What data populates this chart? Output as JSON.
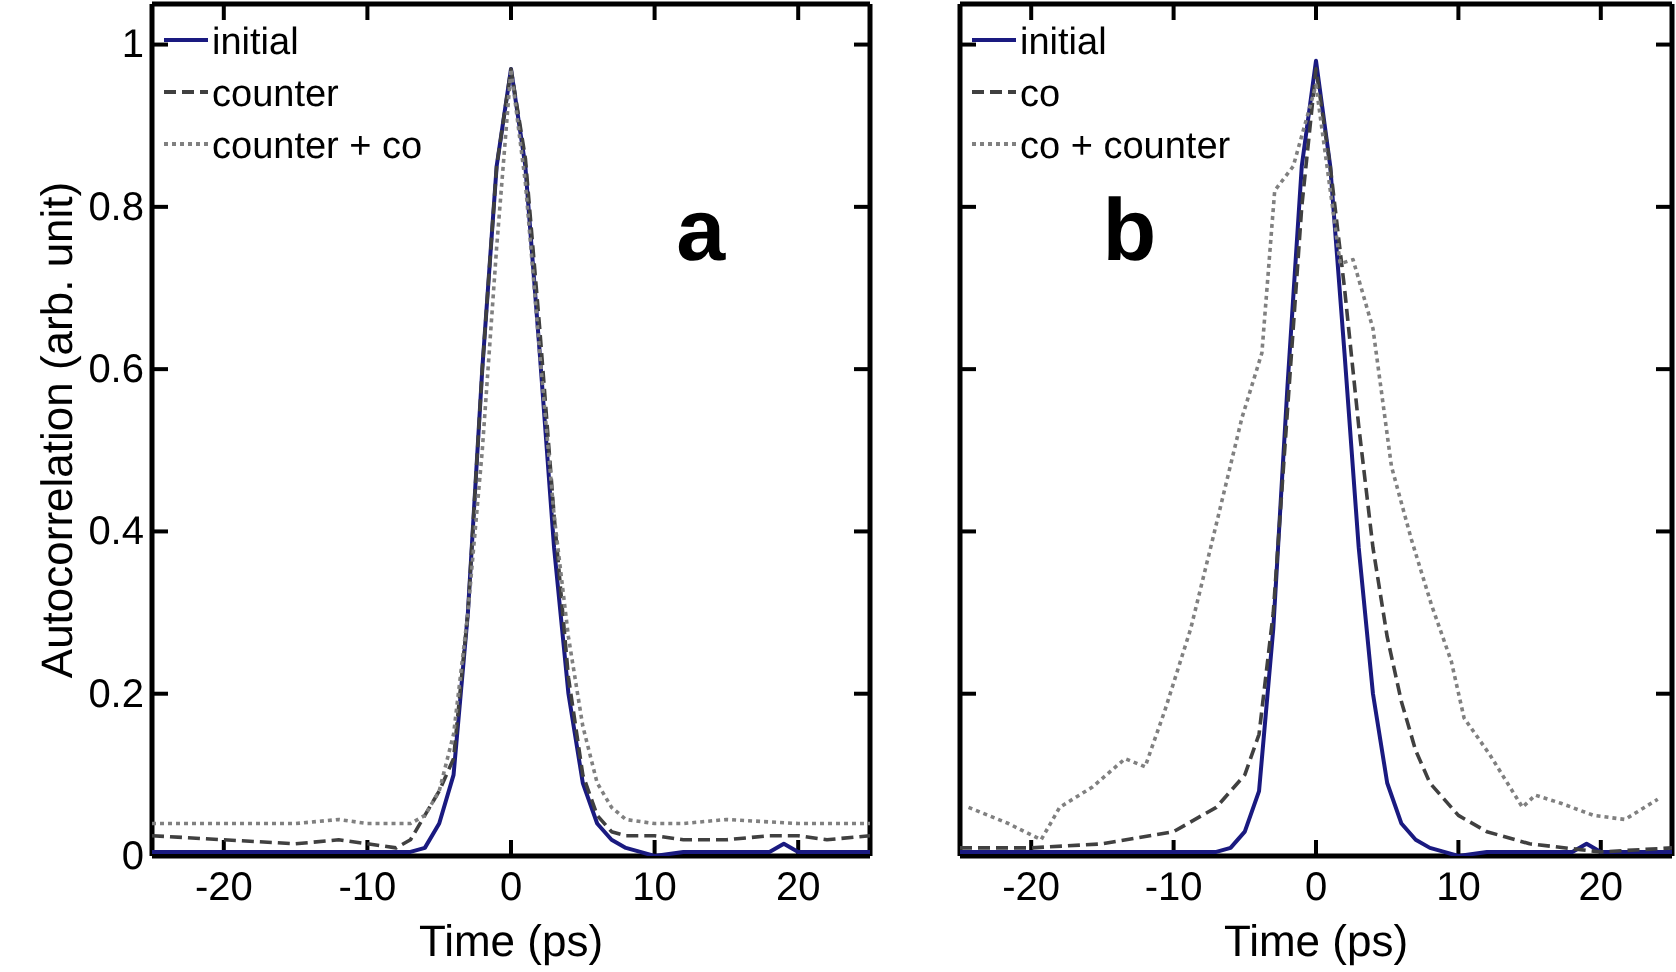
{
  "chart_data": [
    {
      "type": "line",
      "xlabel": "Time (ps)",
      "ylabel": "Autocorrelation (arb. unit)",
      "annotations": [
        "a"
      ],
      "xlim": [
        -25,
        25
      ],
      "xticks": [
        -20,
        -10,
        0,
        10,
        20
      ],
      "ylim": [
        0,
        1.05
      ],
      "yticks": [
        0,
        0.2,
        0.4,
        0.6,
        0.8,
        1
      ],
      "legend": "top left",
      "grid": false,
      "series": [
        {
          "name": "initial",
          "color": "#1a1a80",
          "line_style": "solid",
          "x": [
            -25,
            -20,
            -15,
            -10,
            -8,
            -7,
            -6,
            -5,
            -4,
            -3,
            -2,
            -1,
            0,
            1,
            2,
            3,
            4,
            5,
            6,
            7,
            8,
            9,
            10,
            12,
            15,
            18,
            19,
            20,
            22,
            25
          ],
          "values": [
            0.005,
            0.005,
            0.005,
            0.005,
            0.005,
            0.005,
            0.01,
            0.04,
            0.1,
            0.3,
            0.6,
            0.85,
            0.97,
            0.85,
            0.62,
            0.38,
            0.2,
            0.09,
            0.04,
            0.02,
            0.01,
            0.005,
            0.0,
            0.005,
            0.005,
            0.005,
            0.015,
            0.005,
            0.005,
            0.005
          ]
        },
        {
          "name": "counter",
          "color": "#404040",
          "line_style": "dashed",
          "x": [
            -25,
            -20,
            -15,
            -12,
            -10,
            -8,
            -7,
            -6,
            -5,
            -4,
            -3,
            -2,
            -1,
            0,
            1,
            2,
            3,
            4,
            5,
            6,
            7,
            8,
            10,
            12,
            15,
            18,
            20,
            22,
            25
          ],
          "values": [
            0.025,
            0.02,
            0.015,
            0.02,
            0.015,
            0.01,
            0.02,
            0.05,
            0.08,
            0.12,
            0.3,
            0.6,
            0.85,
            0.97,
            0.86,
            0.65,
            0.42,
            0.22,
            0.1,
            0.05,
            0.03,
            0.025,
            0.025,
            0.02,
            0.02,
            0.025,
            0.025,
            0.02,
            0.025
          ]
        },
        {
          "name": "counter + co",
          "color": "#808080",
          "line_style": "dotted",
          "x": [
            -25,
            -20,
            -15,
            -12,
            -10,
            -8,
            -7,
            -6,
            -5,
            -4,
            -3,
            -2,
            -1,
            0,
            1,
            2,
            3,
            4,
            5,
            6,
            7,
            8,
            10,
            12,
            15,
            20,
            25
          ],
          "values": [
            0.04,
            0.04,
            0.04,
            0.045,
            0.04,
            0.04,
            0.04,
            0.05,
            0.08,
            0.15,
            0.3,
            0.5,
            0.75,
            0.97,
            0.83,
            0.62,
            0.42,
            0.27,
            0.16,
            0.09,
            0.06,
            0.045,
            0.04,
            0.04,
            0.045,
            0.04,
            0.04
          ]
        }
      ]
    },
    {
      "type": "line",
      "xlabel": "Time (ps)",
      "annotations": [
        "b"
      ],
      "xlim": [
        -25,
        25
      ],
      "xticks": [
        -20,
        -10,
        0,
        10,
        20
      ],
      "ylim": [
        0,
        1.05
      ],
      "yticks": [
        0,
        0.2,
        0.4,
        0.6,
        0.8,
        1
      ],
      "legend": "top left",
      "grid": false,
      "tick_labels": "x",
      "series": [
        {
          "name": "initial",
          "color": "#1a1a80",
          "line_style": "solid",
          "x": [
            -25,
            -20,
            -15,
            -10,
            -8,
            -7,
            -6,
            -5,
            -4,
            -3,
            -2,
            -1,
            0,
            1,
            2,
            3,
            4,
            5,
            6,
            7,
            8,
            9,
            10,
            12,
            15,
            18,
            19,
            20,
            22,
            25
          ],
          "values": [
            0.005,
            0.005,
            0.005,
            0.005,
            0.005,
            0.005,
            0.01,
            0.03,
            0.08,
            0.28,
            0.58,
            0.85,
            0.98,
            0.85,
            0.62,
            0.38,
            0.2,
            0.09,
            0.04,
            0.02,
            0.01,
            0.005,
            0.0,
            0.005,
            0.005,
            0.005,
            0.015,
            0.005,
            0.005,
            0.005
          ]
        },
        {
          "name": "co",
          "color": "#404040",
          "line_style": "dashed",
          "x": [
            -25,
            -20,
            -15,
            -10,
            -7,
            -5,
            -4,
            -3,
            -2,
            -1,
            0,
            1,
            2,
            3,
            4,
            5,
            6,
            7,
            8,
            10,
            12,
            15,
            20,
            25
          ],
          "values": [
            0.01,
            0.01,
            0.015,
            0.03,
            0.06,
            0.1,
            0.15,
            0.3,
            0.55,
            0.8,
            0.97,
            0.85,
            0.7,
            0.53,
            0.38,
            0.27,
            0.19,
            0.13,
            0.09,
            0.05,
            0.03,
            0.015,
            0.005,
            0.01
          ]
        },
        {
          "name": "co + counter",
          "color": "#808080",
          "line_style": "dotted",
          "x": [
            -24.4,
            -21.6,
            -19.3,
            -18,
            -15.7,
            -13.4,
            -12,
            -10.6,
            -8.8,
            -7.4,
            -5.2,
            -3.8,
            -2.9,
            -1.6,
            0,
            1.7,
            2.6,
            4,
            5.3,
            6.7,
            8.1,
            9.5,
            10.4,
            12.2,
            14.5,
            15.4,
            17.2,
            19.5,
            21.7,
            24
          ],
          "values": [
            0.06,
            0.04,
            0.02,
            0.06,
            0.085,
            0.12,
            0.11,
            0.18,
            0.28,
            0.38,
            0.54,
            0.62,
            0.82,
            0.85,
            0.95,
            0.73,
            0.735,
            0.65,
            0.48,
            0.39,
            0.31,
            0.24,
            0.17,
            0.125,
            0.06,
            0.075,
            0.065,
            0.05,
            0.045,
            0.07
          ]
        }
      ]
    }
  ]
}
